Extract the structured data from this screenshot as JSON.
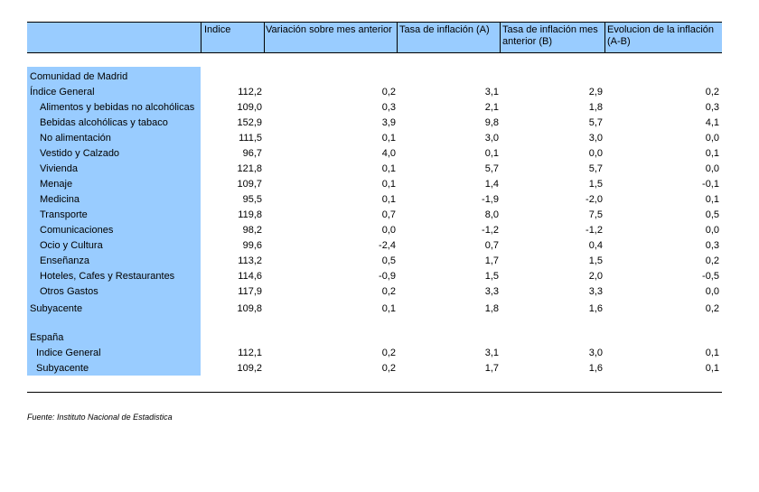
{
  "headers": {
    "indice": "Indice",
    "variacion": "Variación sobre mes anterior",
    "tasa_a": "Tasa de inflación (A)",
    "tasa_b_line1": "Tasa de inflación mes",
    "tasa_b_line2": "anterior (B)",
    "evolucion_line1": "Evolucion de la inflación",
    "evolucion_line2": "(A-B)"
  },
  "sections": {
    "madrid": "Comunidad de Madrid",
    "espana": "España"
  },
  "rows": [
    {
      "label": "Índice General",
      "values": [
        "112,2",
        "0,2",
        "3,1",
        "2,9",
        "0,2"
      ]
    },
    {
      "label": "Alimentos y bebidas no alcohólicas",
      "values": [
        "109,0",
        "0,3",
        "2,1",
        "1,8",
        "0,3"
      ]
    },
    {
      "label": "Bebidas alcohólicas y tabaco",
      "values": [
        "152,9",
        "3,9",
        "9,8",
        "5,7",
        "4,1"
      ]
    },
    {
      "label": "No alimentación",
      "values": [
        "111,5",
        "0,1",
        "3,0",
        "3,0",
        "0,0"
      ]
    },
    {
      "label": "Vestido y Calzado",
      "values": [
        "96,7",
        "4,0",
        "0,1",
        "0,0",
        "0,1"
      ]
    },
    {
      "label": "Vivienda",
      "values": [
        "121,8",
        "0,1",
        "5,7",
        "5,7",
        "0,0"
      ]
    },
    {
      "label": "Menaje",
      "values": [
        "109,7",
        "0,1",
        "1,4",
        "1,5",
        "-0,1"
      ]
    },
    {
      "label": "Medicina",
      "values": [
        "95,5",
        "0,1",
        "-1,9",
        "-2,0",
        "0,1"
      ]
    },
    {
      "label": "Transporte",
      "values": [
        "119,8",
        "0,7",
        "8,0",
        "7,5",
        "0,5"
      ]
    },
    {
      "label": "Comunicaciones",
      "values": [
        "98,2",
        "0,0",
        "-1,2",
        "-1,2",
        "0,0"
      ]
    },
    {
      "label": "Ocio y Cultura",
      "values": [
        "99,6",
        "-2,4",
        "0,7",
        "0,4",
        "0,3"
      ]
    },
    {
      "label": "Enseñanza",
      "values": [
        "113,2",
        "0,5",
        "1,7",
        "1,5",
        "0,2"
      ]
    },
    {
      "label": "Hoteles, Cafes y Restaurantes",
      "values": [
        "114,6",
        "-0,9",
        "1,5",
        "2,0",
        "-0,5"
      ]
    },
    {
      "label": "Otros Gastos",
      "values": [
        "117,9",
        "0,2",
        "3,3",
        "3,3",
        "0,0"
      ]
    },
    {
      "label": "Subyacente",
      "values": [
        "109,8",
        "0,1",
        "1,8",
        "1,6",
        "0,2"
      ]
    },
    {
      "label": "Indice General",
      "values": [
        "112,1",
        "0,2",
        "3,1",
        "3,0",
        "0,1"
      ]
    },
    {
      "label": "Subyacente",
      "values": [
        "109,2",
        "0,2",
        "1,7",
        "1,6",
        "0,1"
      ]
    }
  ],
  "footer": "Fuente: Instituto Nacional de Estadistica"
}
